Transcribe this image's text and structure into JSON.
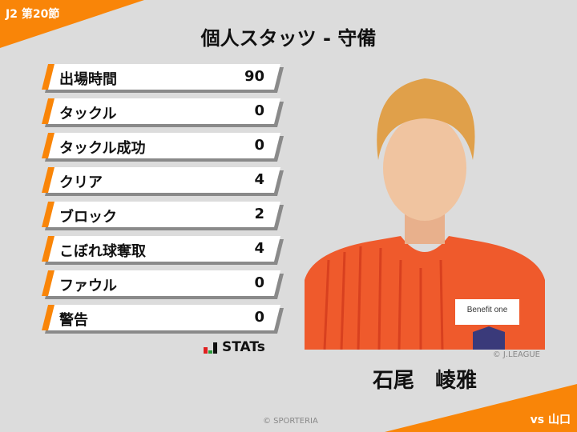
{
  "header": {
    "round": "J2 第20節",
    "title": "個人スタッツ - 守備",
    "opponent": "vs 山口"
  },
  "stats": [
    {
      "label": "出場時間",
      "value": "90"
    },
    {
      "label": "タックル",
      "value": "0"
    },
    {
      "label": "タックル成功",
      "value": "0"
    },
    {
      "label": "クリア",
      "value": "4"
    },
    {
      "label": "ブロック",
      "value": "2"
    },
    {
      "label": "こぼれ球奪取",
      "value": "4"
    },
    {
      "label": "ファウル",
      "value": "0"
    },
    {
      "label": "警告",
      "value": "0"
    }
  ],
  "brand": {
    "stats_logo": "STATs"
  },
  "player": {
    "name": "石尾　崚雅",
    "photo_credit": "© J.LEAGUE",
    "sponsor": "Benefit one"
  },
  "footer": {
    "copyright": "© SPORTERIA"
  },
  "colors": {
    "accent": "#f98508",
    "background": "#dcdcdc"
  }
}
